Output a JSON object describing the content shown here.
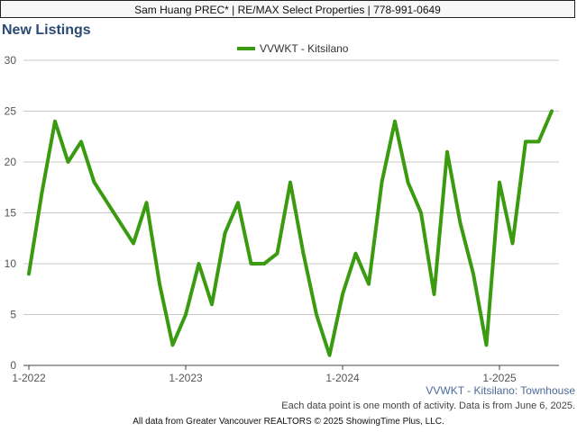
{
  "header": {
    "banner_text": "Sam Huang PREC* | RE/MAX Select Properties | 778-991-0649",
    "title": "New Listings"
  },
  "chart_data": {
    "type": "line",
    "title": "New Listings",
    "subtitle": "VVWKT - Kitsilano: Townhouse",
    "xlabel": "",
    "ylabel": "",
    "legend_position": "top-center",
    "grid": true,
    "ylim": [
      0,
      30
    ],
    "yticks": [
      0,
      5,
      10,
      15,
      20,
      25,
      30
    ],
    "xtick_labels": [
      "1-2022",
      "1-2023",
      "1-2024",
      "1-2025"
    ],
    "x": [
      "2022-01",
      "2022-02",
      "2022-03",
      "2022-04",
      "2022-05",
      "2022-06",
      "2022-07",
      "2022-08",
      "2022-09",
      "2022-10",
      "2022-11",
      "2022-12",
      "2023-01",
      "2023-02",
      "2023-03",
      "2023-04",
      "2023-05",
      "2023-06",
      "2023-07",
      "2023-08",
      "2023-09",
      "2023-10",
      "2023-11",
      "2023-12",
      "2024-01",
      "2024-02",
      "2024-03",
      "2024-04",
      "2024-05",
      "2024-06",
      "2024-07",
      "2024-08",
      "2024-09",
      "2024-10",
      "2024-11",
      "2024-12",
      "2025-01",
      "2025-02",
      "2025-03",
      "2025-04",
      "2025-05"
    ],
    "series": [
      {
        "name": "VVWKT - Kitsilano",
        "color": "#3a9a10",
        "values": [
          9,
          17,
          24,
          20,
          22,
          18,
          16,
          14,
          12,
          16,
          8,
          2,
          5,
          10,
          6,
          13,
          16,
          10,
          10,
          11,
          18,
          11,
          5,
          1,
          7,
          11,
          8,
          18,
          24,
          18,
          15,
          7,
          21,
          14,
          9,
          2,
          18,
          12,
          22,
          22,
          25
        ]
      }
    ]
  },
  "notes": {
    "data_note": "Each data point is one month of activity. Data is from June 6, 2025.",
    "footer": "All data from Greater Vancouver REALTORS © 2025 ShowingTime Plus, LLC."
  }
}
